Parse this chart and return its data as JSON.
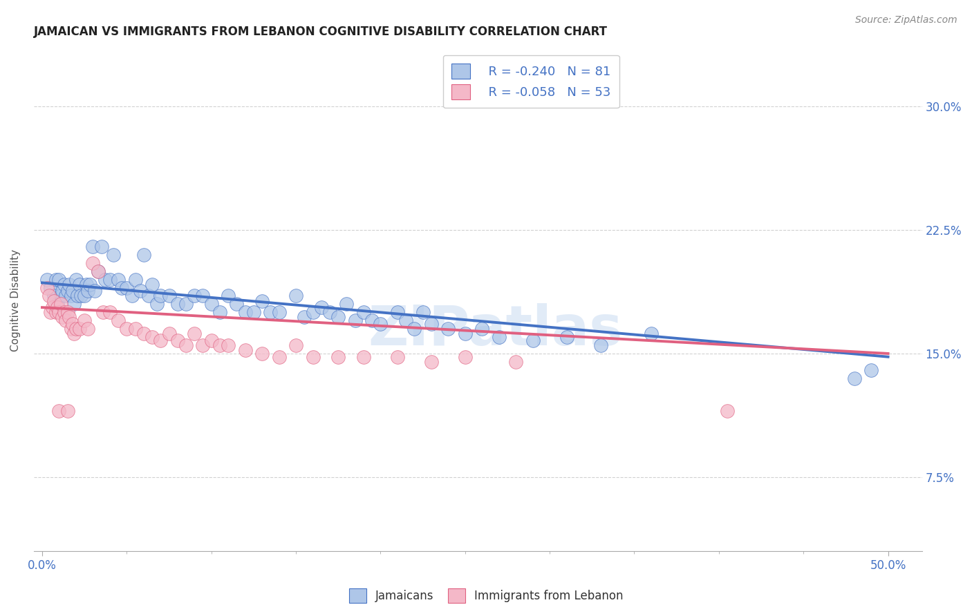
{
  "title": "JAMAICAN VS IMMIGRANTS FROM LEBANON COGNITIVE DISABILITY CORRELATION CHART",
  "source": "Source: ZipAtlas.com",
  "ylabel": "Cognitive Disability",
  "ytick_labels": [
    "7.5%",
    "15.0%",
    "22.5%",
    "30.0%"
  ],
  "ytick_values": [
    0.075,
    0.15,
    0.225,
    0.3
  ],
  "xtick_values": [
    0.0,
    0.5
  ],
  "xtick_labels": [
    "0.0%",
    "50.0%"
  ],
  "xlim": [
    -0.005,
    0.52
  ],
  "ylim": [
    0.03,
    0.335
  ],
  "legend_label_1": "Jamaicans",
  "legend_label_2": "Immigrants from Lebanon",
  "R1": -0.24,
  "N1": 81,
  "R2": -0.058,
  "N2": 53,
  "color_blue": "#aec6e8",
  "color_pink": "#f4b8c8",
  "color_blue_dark": "#4472c4",
  "color_pink_dark": "#e06080",
  "color_axis_label": "#4472c4",
  "watermark": "ZIPatlas",
  "background_color": "#ffffff",
  "blue_line_y_start": 0.193,
  "blue_line_y_end": 0.148,
  "pink_line_y_start": 0.178,
  "pink_line_y_end": 0.15,
  "blue_scatter_x": [
    0.003,
    0.005,
    0.007,
    0.008,
    0.009,
    0.01,
    0.011,
    0.012,
    0.013,
    0.014,
    0.015,
    0.016,
    0.017,
    0.018,
    0.019,
    0.02,
    0.021,
    0.022,
    0.023,
    0.025,
    0.026,
    0.027,
    0.028,
    0.03,
    0.031,
    0.033,
    0.035,
    0.037,
    0.04,
    0.042,
    0.045,
    0.047,
    0.05,
    0.053,
    0.055,
    0.058,
    0.06,
    0.063,
    0.065,
    0.068,
    0.07,
    0.075,
    0.08,
    0.085,
    0.09,
    0.095,
    0.1,
    0.105,
    0.11,
    0.115,
    0.12,
    0.125,
    0.13,
    0.135,
    0.14,
    0.15,
    0.155,
    0.16,
    0.165,
    0.17,
    0.175,
    0.18,
    0.185,
    0.19,
    0.195,
    0.2,
    0.21,
    0.215,
    0.22,
    0.225,
    0.23,
    0.24,
    0.25,
    0.26,
    0.27,
    0.29,
    0.31,
    0.33,
    0.36,
    0.48,
    0.49
  ],
  "blue_scatter_y": [
    0.195,
    0.19,
    0.185,
    0.195,
    0.18,
    0.195,
    0.185,
    0.188,
    0.192,
    0.185,
    0.188,
    0.192,
    0.185,
    0.188,
    0.18,
    0.195,
    0.185,
    0.192,
    0.185,
    0.185,
    0.192,
    0.188,
    0.192,
    0.215,
    0.188,
    0.2,
    0.215,
    0.195,
    0.195,
    0.21,
    0.195,
    0.19,
    0.19,
    0.185,
    0.195,
    0.188,
    0.21,
    0.185,
    0.192,
    0.18,
    0.185,
    0.185,
    0.18,
    0.18,
    0.185,
    0.185,
    0.18,
    0.175,
    0.185,
    0.18,
    0.175,
    0.175,
    0.182,
    0.175,
    0.175,
    0.185,
    0.172,
    0.175,
    0.178,
    0.175,
    0.172,
    0.18,
    0.17,
    0.175,
    0.17,
    0.168,
    0.175,
    0.17,
    0.165,
    0.175,
    0.168,
    0.165,
    0.162,
    0.165,
    0.16,
    0.158,
    0.16,
    0.155,
    0.162,
    0.135,
    0.14
  ],
  "pink_scatter_x": [
    0.003,
    0.004,
    0.005,
    0.006,
    0.007,
    0.008,
    0.009,
    0.01,
    0.011,
    0.012,
    0.013,
    0.014,
    0.015,
    0.016,
    0.017,
    0.018,
    0.019,
    0.02,
    0.022,
    0.025,
    0.027,
    0.03,
    0.033,
    0.036,
    0.04,
    0.045,
    0.05,
    0.055,
    0.06,
    0.065,
    0.07,
    0.075,
    0.08,
    0.085,
    0.09,
    0.095,
    0.1,
    0.105,
    0.11,
    0.12,
    0.13,
    0.14,
    0.15,
    0.16,
    0.175,
    0.19,
    0.21,
    0.23,
    0.25,
    0.28,
    0.01,
    0.015,
    0.405
  ],
  "pink_scatter_y": [
    0.19,
    0.185,
    0.175,
    0.178,
    0.182,
    0.175,
    0.178,
    0.175,
    0.18,
    0.172,
    0.175,
    0.17,
    0.175,
    0.172,
    0.165,
    0.168,
    0.162,
    0.165,
    0.165,
    0.17,
    0.165,
    0.205,
    0.2,
    0.175,
    0.175,
    0.17,
    0.165,
    0.165,
    0.162,
    0.16,
    0.158,
    0.162,
    0.158,
    0.155,
    0.162,
    0.155,
    0.158,
    0.155,
    0.155,
    0.152,
    0.15,
    0.148,
    0.155,
    0.148,
    0.148,
    0.148,
    0.148,
    0.145,
    0.148,
    0.145,
    0.115,
    0.115,
    0.115
  ]
}
